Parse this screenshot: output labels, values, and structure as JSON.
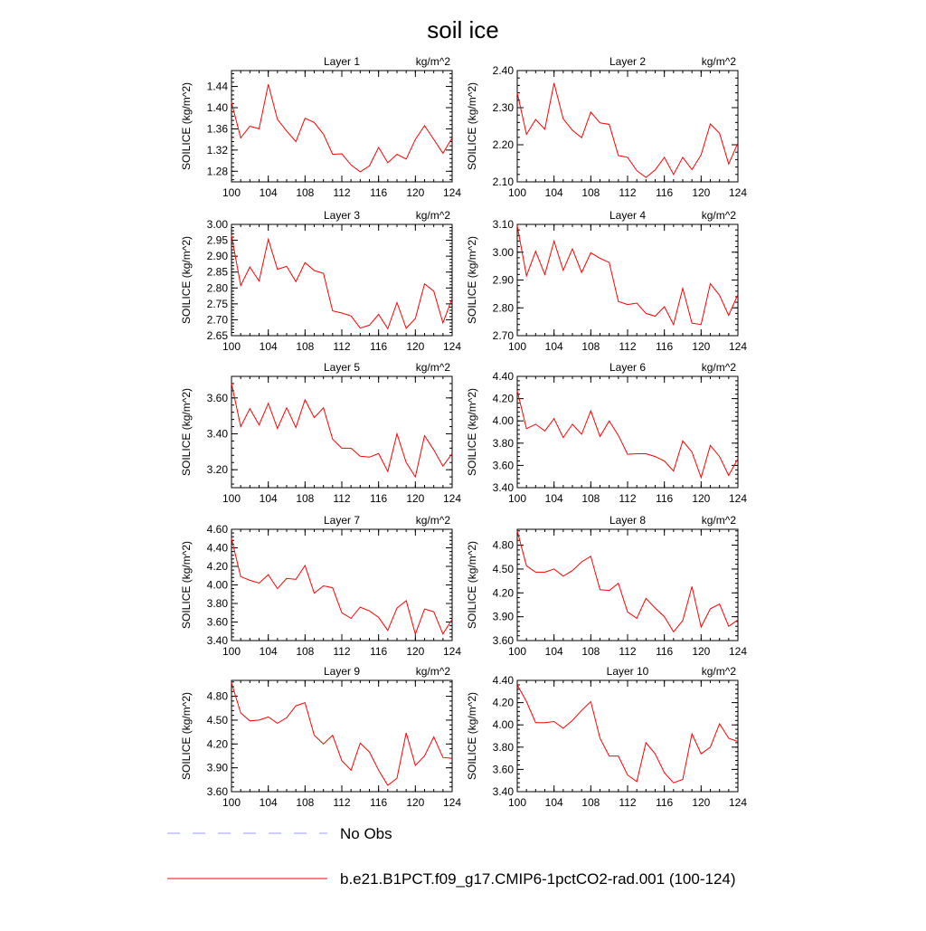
{
  "title": "soil ice",
  "legend": {
    "items": [
      {
        "label": "No Obs",
        "color": "#9999ff",
        "style": "dashed"
      },
      {
        "label": "b.e21.B1PCT.f09_g17.CMIP6-1pctCO2-rad.001 (100-124)",
        "color": "#ff0000",
        "style": "solid"
      }
    ]
  },
  "colors": {
    "series": "#ff0000",
    "obs": "#9999ff",
    "axis": "#000000"
  },
  "chart_data": [
    {
      "type": "line",
      "title": "Layer 1",
      "units": "kg/m^2",
      "ylabel": "SOILICE  (kg/m^2)",
      "xlim": [
        100,
        124
      ],
      "xticks": [
        "100",
        "104",
        "108",
        "112",
        "116",
        "120",
        "124"
      ],
      "ylim": [
        1.26,
        1.47
      ],
      "yticks": [
        "1.28",
        "1.32",
        "1.36",
        "1.40",
        "1.44"
      ],
      "x": [
        100,
        101,
        102,
        103,
        104,
        105,
        106,
        107,
        108,
        109,
        110,
        111,
        112,
        113,
        114,
        115,
        116,
        117,
        118,
        119,
        120,
        121,
        122,
        123,
        124
      ],
      "series": [
        {
          "values": [
            1.41,
            1.343,
            1.365,
            1.36,
            1.444,
            1.378,
            1.356,
            1.336,
            1.38,
            1.372,
            1.35,
            1.312,
            1.313,
            1.292,
            1.279,
            1.29,
            1.325,
            1.296,
            1.312,
            1.303,
            1.34,
            1.366,
            1.34,
            1.314,
            1.343
          ]
        }
      ]
    },
    {
      "type": "line",
      "title": "Layer 2",
      "units": "kg/m^2",
      "ylabel": "SOILICE  (kg/m^2)",
      "xlim": [
        100,
        124
      ],
      "xticks": [
        "100",
        "104",
        "108",
        "112",
        "116",
        "120",
        "124"
      ],
      "ylim": [
        2.1,
        2.4
      ],
      "yticks": [
        "2.10",
        "2.20",
        "2.30",
        "2.40"
      ],
      "x": [
        100,
        101,
        102,
        103,
        104,
        105,
        106,
        107,
        108,
        109,
        110,
        111,
        112,
        113,
        114,
        115,
        116,
        117,
        118,
        119,
        120,
        121,
        122,
        123,
        124
      ],
      "series": [
        {
          "values": [
            2.34,
            2.228,
            2.268,
            2.242,
            2.366,
            2.27,
            2.239,
            2.219,
            2.288,
            2.259,
            2.255,
            2.171,
            2.166,
            2.13,
            2.112,
            2.132,
            2.166,
            2.12,
            2.166,
            2.133,
            2.173,
            2.256,
            2.231,
            2.148,
            2.205
          ]
        }
      ]
    },
    {
      "type": "line",
      "title": "Layer 3",
      "units": "kg/m^2",
      "ylabel": "SOILICE  (kg/m^2)",
      "xlim": [
        100,
        124
      ],
      "xticks": [
        "100",
        "104",
        "108",
        "112",
        "116",
        "120",
        "124"
      ],
      "ylim": [
        2.65,
        3.0
      ],
      "yticks": [
        "2.65",
        "2.70",
        "2.75",
        "2.80",
        "2.85",
        "2.90",
        "2.95",
        "3.00"
      ],
      "x": [
        100,
        101,
        102,
        103,
        104,
        105,
        106,
        107,
        108,
        109,
        110,
        111,
        112,
        113,
        114,
        115,
        116,
        117,
        118,
        119,
        120,
        121,
        122,
        123,
        124
      ],
      "series": [
        {
          "values": [
            2.965,
            2.808,
            2.866,
            2.822,
            2.953,
            2.859,
            2.868,
            2.82,
            2.88,
            2.855,
            2.846,
            2.728,
            2.721,
            2.712,
            2.674,
            2.683,
            2.717,
            2.672,
            2.754,
            2.673,
            2.704,
            2.813,
            2.79,
            2.69,
            2.767
          ]
        }
      ]
    },
    {
      "type": "line",
      "title": "Layer 4",
      "units": "kg/m^2",
      "ylabel": "SOILICE  (kg/m^2)",
      "xlim": [
        100,
        124
      ],
      "xticks": [
        "100",
        "104",
        "108",
        "112",
        "116",
        "120",
        "124"
      ],
      "ylim": [
        2.7,
        3.1
      ],
      "yticks": [
        "2.70",
        "2.80",
        "2.90",
        "3.00",
        "3.10"
      ],
      "x": [
        100,
        101,
        102,
        103,
        104,
        105,
        106,
        107,
        108,
        109,
        110,
        111,
        112,
        113,
        114,
        115,
        116,
        117,
        118,
        119,
        120,
        121,
        122,
        123,
        124
      ],
      "series": [
        {
          "values": [
            3.095,
            2.915,
            3.003,
            2.92,
            3.04,
            2.935,
            3.012,
            2.927,
            2.998,
            2.978,
            2.963,
            2.823,
            2.812,
            2.817,
            2.78,
            2.77,
            2.804,
            2.74,
            2.87,
            2.745,
            2.74,
            2.887,
            2.845,
            2.773,
            2.848
          ]
        }
      ]
    },
    {
      "type": "line",
      "title": "Layer 5",
      "units": "kg/m^2",
      "ylabel": "SOILICE  (kg/m^2)",
      "xlim": [
        100,
        124
      ],
      "xticks": [
        "100",
        "104",
        "108",
        "112",
        "116",
        "120",
        "124"
      ],
      "ylim": [
        3.1,
        3.72
      ],
      "yticks": [
        "3.20",
        "3.40",
        "3.60"
      ],
      "x": [
        100,
        101,
        102,
        103,
        104,
        105,
        106,
        107,
        108,
        109,
        110,
        111,
        112,
        113,
        114,
        115,
        116,
        117,
        118,
        119,
        120,
        121,
        122,
        123,
        124
      ],
      "series": [
        {
          "values": [
            3.68,
            3.44,
            3.54,
            3.45,
            3.57,
            3.43,
            3.545,
            3.435,
            3.59,
            3.49,
            3.545,
            3.37,
            3.32,
            3.32,
            3.275,
            3.27,
            3.29,
            3.19,
            3.4,
            3.24,
            3.16,
            3.39,
            3.31,
            3.22,
            3.29
          ]
        }
      ]
    },
    {
      "type": "line",
      "title": "Layer 6",
      "units": "kg/m^2",
      "ylabel": "SOILICE  (kg/m^2)",
      "xlim": [
        100,
        124
      ],
      "xticks": [
        "100",
        "104",
        "108",
        "112",
        "116",
        "120",
        "124"
      ],
      "ylim": [
        3.4,
        4.4
      ],
      "yticks": [
        "3.40",
        "3.60",
        "3.80",
        "4.00",
        "4.20",
        "4.40"
      ],
      "x": [
        100,
        101,
        102,
        103,
        104,
        105,
        106,
        107,
        108,
        109,
        110,
        111,
        112,
        113,
        114,
        115,
        116,
        117,
        118,
        119,
        120,
        121,
        122,
        123,
        124
      ],
      "series": [
        {
          "values": [
            4.27,
            3.93,
            3.97,
            3.91,
            4.02,
            3.85,
            3.97,
            3.88,
            4.09,
            3.86,
            4.0,
            3.87,
            3.7,
            3.705,
            3.705,
            3.68,
            3.64,
            3.55,
            3.82,
            3.72,
            3.49,
            3.78,
            3.68,
            3.51,
            3.66
          ]
        }
      ]
    },
    {
      "type": "line",
      "title": "Layer 7",
      "units": "kg/m^2",
      "ylabel": "SOILICE  (kg/m^2)",
      "xlim": [
        100,
        124
      ],
      "xticks": [
        "100",
        "104",
        "108",
        "112",
        "116",
        "120",
        "124"
      ],
      "ylim": [
        3.4,
        4.6
      ],
      "yticks": [
        "3.40",
        "3.60",
        "3.80",
        "4.00",
        "4.20",
        "4.40",
        "4.60"
      ],
      "x": [
        100,
        101,
        102,
        103,
        104,
        105,
        106,
        107,
        108,
        109,
        110,
        111,
        112,
        113,
        114,
        115,
        116,
        117,
        118,
        119,
        120,
        121,
        122,
        123,
        124
      ],
      "series": [
        {
          "values": [
            4.5,
            4.09,
            4.05,
            4.02,
            4.11,
            3.96,
            4.07,
            4.06,
            4.21,
            3.91,
            3.99,
            3.97,
            3.7,
            3.64,
            3.76,
            3.72,
            3.65,
            3.51,
            3.75,
            3.83,
            3.47,
            3.74,
            3.71,
            3.47,
            3.63
          ]
        }
      ]
    },
    {
      "type": "line",
      "title": "Layer 8",
      "units": "kg/m^2",
      "ylabel": "SOILICE  (kg/m^2)",
      "xlim": [
        100,
        124
      ],
      "xticks": [
        "100",
        "104",
        "108",
        "112",
        "116",
        "120",
        "124"
      ],
      "ylim": [
        3.6,
        5.0
      ],
      "yticks": [
        "3.60",
        "3.90",
        "4.20",
        "4.50",
        "4.80"
      ],
      "x": [
        100,
        101,
        102,
        103,
        104,
        105,
        106,
        107,
        108,
        109,
        110,
        111,
        112,
        113,
        114,
        115,
        116,
        117,
        118,
        119,
        120,
        121,
        122,
        123,
        124
      ],
      "series": [
        {
          "values": [
            4.98,
            4.54,
            4.46,
            4.46,
            4.5,
            4.41,
            4.48,
            4.59,
            4.66,
            4.24,
            4.23,
            4.32,
            3.96,
            3.88,
            4.13,
            4.01,
            3.9,
            3.71,
            3.85,
            4.28,
            3.77,
            4.0,
            4.06,
            3.78,
            3.86
          ]
        }
      ]
    },
    {
      "type": "line",
      "title": "Layer 9",
      "units": "kg/m^2",
      "ylabel": "SOILICE  (kg/m^2)",
      "xlim": [
        100,
        124
      ],
      "xticks": [
        "100",
        "104",
        "108",
        "112",
        "116",
        "120",
        "124"
      ],
      "ylim": [
        3.6,
        5.0
      ],
      "yticks": [
        "3.60",
        "3.90",
        "4.20",
        "4.50",
        "4.80"
      ],
      "x": [
        100,
        101,
        102,
        103,
        104,
        105,
        106,
        107,
        108,
        109,
        110,
        111,
        112,
        113,
        114,
        115,
        116,
        117,
        118,
        119,
        120,
        121,
        122,
        123,
        124
      ],
      "series": [
        {
          "values": [
            4.97,
            4.59,
            4.49,
            4.5,
            4.54,
            4.46,
            4.53,
            4.68,
            4.72,
            4.31,
            4.2,
            4.31,
            3.99,
            3.87,
            4.21,
            4.1,
            3.87,
            3.68,
            3.77,
            4.34,
            3.93,
            4.05,
            4.29,
            4.03,
            4.02
          ]
        }
      ]
    },
    {
      "type": "line",
      "title": "Layer 10",
      "units": "kg/m^2",
      "ylabel": "SOILICE  (kg/m^2)",
      "xlim": [
        100,
        124
      ],
      "xticks": [
        "100",
        "104",
        "108",
        "112",
        "116",
        "120",
        "124"
      ],
      "ylim": [
        3.4,
        4.4
      ],
      "yticks": [
        "3.40",
        "3.60",
        "3.80",
        "4.00",
        "4.20",
        "4.40"
      ],
      "x": [
        100,
        101,
        102,
        103,
        104,
        105,
        106,
        107,
        108,
        109,
        110,
        111,
        112,
        113,
        114,
        115,
        116,
        117,
        118,
        119,
        120,
        121,
        122,
        123,
        124
      ],
      "series": [
        {
          "values": [
            4.36,
            4.21,
            4.02,
            4.02,
            4.03,
            3.97,
            4.04,
            4.13,
            4.21,
            3.88,
            3.72,
            3.72,
            3.55,
            3.49,
            3.84,
            3.74,
            3.57,
            3.48,
            3.51,
            3.92,
            3.74,
            3.8,
            4.01,
            3.88,
            3.85
          ]
        }
      ]
    }
  ]
}
